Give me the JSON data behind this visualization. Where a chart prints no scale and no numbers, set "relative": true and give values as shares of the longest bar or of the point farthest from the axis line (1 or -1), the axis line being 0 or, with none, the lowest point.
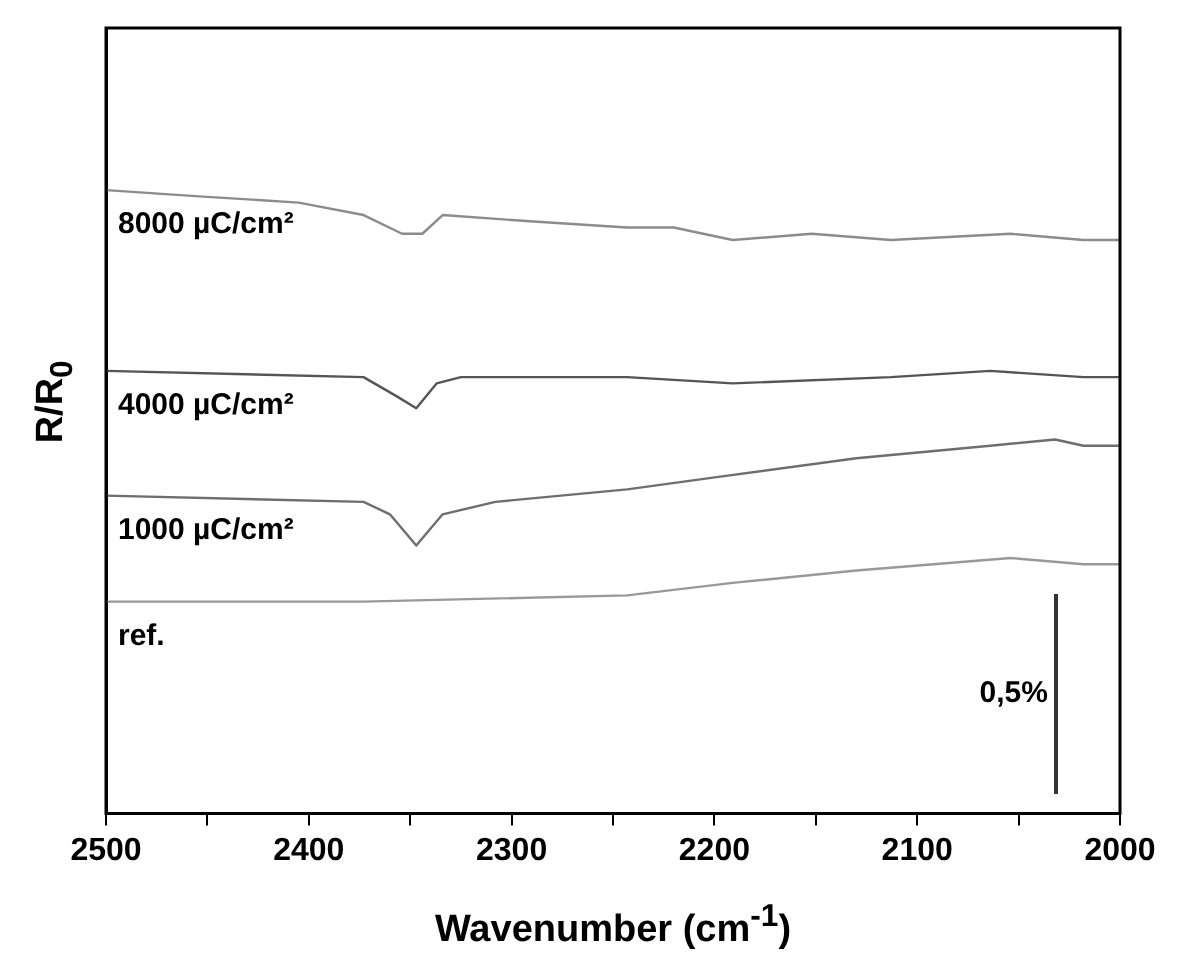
{
  "chart_data": {
    "type": "line",
    "xlabel": "Wavenumber (cm$^{-1}$)",
    "ylabel": "R/R$_{0}$",
    "relative": true,
    "legend": false,
    "grid": false,
    "marker": "none",
    "line_style": "solid",
    "xlim": [
      2500,
      2000
    ],
    "xticks": [
      2500,
      {
        "value": 2450,
        "label": null
      },
      2400,
      {
        "value": 2350,
        "label": null
      },
      2300,
      {
        "value": 2250,
        "label": null
      },
      2200,
      {
        "value": 2150,
        "label": null
      },
      2100,
      {
        "value": 2050,
        "label": null
      },
      2000
    ],
    "annotations": [
      "0,5%"
    ],
    "series": [
      {
        "name": "8000 µC/cm²",
        "color": "#8c8c8c",
        "x": [
          2500,
          2454,
          2405,
          2373,
          2354,
          2344,
          2334,
          2291,
          2243,
          2220,
          2191,
          2152,
          2113,
          2054,
          2018,
          2000
        ],
        "values": [
          1.0,
          0.99,
          0.98,
          0.96,
          0.93,
          0.93,
          0.96,
          0.95,
          0.94,
          0.94,
          0.92,
          0.93,
          0.92,
          0.93,
          0.92,
          0.92
        ]
      },
      {
        "name": "4000 µC/cm²",
        "color": "#555555",
        "x": [
          2500,
          2373,
          2357,
          2347,
          2337,
          2325,
          2243,
          2191,
          2113,
          2064,
          2018,
          2000
        ],
        "values": [
          0.71,
          0.7,
          0.67,
          0.65,
          0.69,
          0.7,
          0.7,
          0.69,
          0.7,
          0.71,
          0.7,
          0.7
        ]
      },
      {
        "name": "1000 µC/cm²",
        "color": "#6e6e6e",
        "x": [
          2500,
          2373,
          2360,
          2347,
          2334,
          2308,
          2243,
          2198,
          2130,
          2064,
          2032,
          2018,
          2000
        ],
        "values": [
          0.51,
          0.5,
          0.48,
          0.43,
          0.48,
          0.5,
          0.52,
          0.54,
          0.57,
          0.59,
          0.6,
          0.59,
          0.59
        ]
      },
      {
        "name": "ref.",
        "color": "#999999",
        "x": [
          2500,
          2373,
          2243,
          2191,
          2130,
          2054,
          2018,
          2000
        ],
        "values": [
          0.34,
          0.34,
          0.35,
          0.37,
          0.39,
          0.41,
          0.4,
          0.4
        ]
      }
    ]
  }
}
